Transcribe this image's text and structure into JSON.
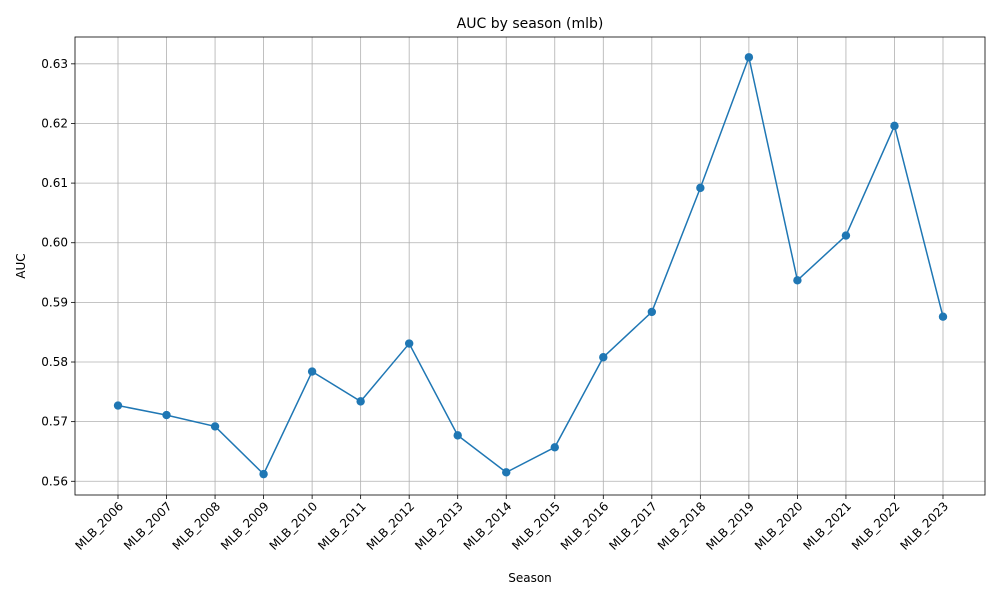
{
  "chart_data": {
    "type": "line",
    "title": "AUC by season (mlb)",
    "xlabel": "Season",
    "ylabel": "AUC",
    "categories": [
      "MLB_2006",
      "MLB_2007",
      "MLB_2008",
      "MLB_2009",
      "MLB_2010",
      "MLB_2011",
      "MLB_2012",
      "MLB_2013",
      "MLB_2014",
      "MLB_2015",
      "MLB_2016",
      "MLB_2017",
      "MLB_2018",
      "MLB_2019",
      "MLB_2020",
      "MLB_2021",
      "MLB_2022",
      "MLB_2023"
    ],
    "series": [
      {
        "values": [
          0.5727,
          0.5711,
          0.5692,
          0.5612,
          0.5784,
          0.5734,
          0.5831,
          0.5677,
          0.5615,
          0.5657,
          0.5808,
          0.5884,
          0.6092,
          0.6311,
          0.5937,
          0.6012,
          0.6196,
          0.5876
        ],
        "color": "#1f77b4",
        "marker": "circle"
      }
    ],
    "yticks": [
      "0.56",
      "0.57",
      "0.58",
      "0.59",
      "0.60",
      "0.61",
      "0.62",
      "0.63"
    ],
    "ylim": [
      0.5577,
      0.6345
    ],
    "grid": true,
    "legend": "none"
  }
}
